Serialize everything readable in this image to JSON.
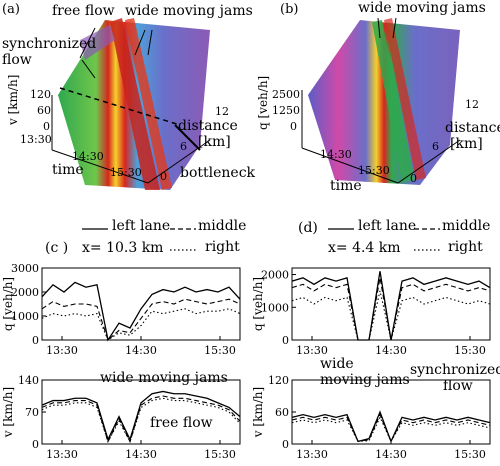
{
  "panels": {
    "a": {
      "tag": "(a)",
      "labels": {
        "free_flow": "free flow",
        "wide_moving_jams": "wide moving jams",
        "synchronized": "synchronized",
        "flow": "flow",
        "bottleneck": "bottleneck",
        "distance": "distance",
        "km": "[km]",
        "time": "time",
        "v_axis": "v [km/h]"
      },
      "v_ticks": [
        "120",
        "60",
        "0"
      ],
      "time_ticks": [
        "13:30",
        "14:30",
        "15:30"
      ],
      "dist_ticks": [
        "12",
        "6",
        "0"
      ]
    },
    "b": {
      "tag": "(b)",
      "labels": {
        "wide_moving_jams": "wide moving jams",
        "distance": "distance",
        "km": "[km]",
        "time": "time",
        "q_axis": "q [veh/h]"
      },
      "q_ticks": [
        "2500",
        "1250",
        "0"
      ],
      "time_ticks": [
        "14:30",
        "15:30"
      ],
      "dist_ticks": [
        "12",
        "6",
        "0"
      ]
    },
    "c": {
      "tag": "(c )",
      "legend": {
        "left": "left lane",
        "middle": "middle",
        "right": "right"
      },
      "location": "x= 10.3 km",
      "q_axis": "q [veh/h]",
      "v_axis": "v [km/h]",
      "annot_jams": "wide moving jams",
      "annot_free": "free flow"
    },
    "d": {
      "tag": "(d)",
      "legend": {
        "left": "left lane",
        "middle": "middle",
        "right": "right"
      },
      "location": "x= 4.4 km",
      "q_axis": "q [veh/h]",
      "v_axis": "v [km/h]",
      "annot_wide": "wide",
      "annot_jams": "moving jams",
      "annot_sync1": "synchronized",
      "annot_sync2": "flow"
    }
  },
  "chart_data": [
    {
      "id": "c-q",
      "type": "line",
      "ylabel": "q [veh/h]",
      "x_ticks": [
        "13:30",
        "14:30",
        "15:30"
      ],
      "ylim": [
        0,
        3000
      ],
      "y_ticks": [
        0,
        1000,
        2000,
        3000
      ],
      "x": [
        0,
        10,
        20,
        30,
        40,
        50,
        60,
        70,
        80,
        90,
        100,
        110,
        120,
        130,
        140,
        150,
        160,
        170,
        180
      ],
      "series": [
        {
          "name": "left lane",
          "values": [
            1800,
            2300,
            2000,
            2400,
            2200,
            2300,
            0,
            700,
            500,
            1300,
            1900,
            2100,
            2000,
            2200,
            2000,
            2100,
            2000,
            2200,
            1700
          ]
        },
        {
          "name": "middle",
          "values": [
            1300,
            1600,
            1400,
            1500,
            1500,
            1400,
            0,
            400,
            300,
            900,
            1500,
            1600,
            1500,
            1700,
            1600,
            1500,
            1600,
            1700,
            1500
          ]
        },
        {
          "name": "right",
          "values": [
            900,
            1100,
            1000,
            1100,
            1000,
            1100,
            0,
            300,
            200,
            600,
            1200,
            1100,
            1200,
            1300,
            1100,
            1200,
            1200,
            1300,
            1100
          ]
        }
      ]
    },
    {
      "id": "c-v",
      "type": "line",
      "ylabel": "v [km/h]",
      "x_ticks": [
        "13:30",
        "14:30",
        "15:30"
      ],
      "ylim": [
        0,
        140
      ],
      "y_ticks": [
        0,
        70,
        140
      ],
      "x": [
        0,
        10,
        20,
        30,
        40,
        50,
        60,
        70,
        80,
        90,
        100,
        110,
        120,
        130,
        140,
        150,
        160,
        170,
        180
      ],
      "series": [
        {
          "name": "left lane",
          "values": [
            85,
            95,
            95,
            100,
            100,
            90,
            10,
            60,
            10,
            90,
            110,
            115,
            110,
            110,
            105,
            100,
            90,
            80,
            60
          ]
        },
        {
          "name": "middle",
          "values": [
            80,
            90,
            90,
            95,
            95,
            85,
            5,
            55,
            5,
            85,
            100,
            105,
            100,
            100,
            95,
            90,
            85,
            75,
            50
          ]
        },
        {
          "name": "right",
          "values": [
            75,
            85,
            85,
            90,
            90,
            80,
            5,
            50,
            5,
            80,
            95,
            100,
            95,
            95,
            90,
            85,
            80,
            70,
            45
          ]
        }
      ]
    },
    {
      "id": "d-q",
      "type": "line",
      "ylabel": "q [veh/h]",
      "x_ticks": [
        "13:30",
        "14:30",
        "15:30"
      ],
      "ylim": [
        0,
        2200
      ],
      "y_ticks": [
        0,
        1000,
        2000
      ],
      "x": [
        0,
        10,
        20,
        30,
        40,
        50,
        60,
        70,
        80,
        90,
        100,
        110,
        120,
        130,
        140,
        150,
        160,
        170,
        180
      ],
      "series": [
        {
          "name": "left lane",
          "values": [
            1800,
            1900,
            1700,
            1900,
            1800,
            1900,
            0,
            0,
            2100,
            0,
            1800,
            1900,
            1700,
            1800,
            1900,
            1800,
            1700,
            1800,
            1600
          ]
        },
        {
          "name": "middle",
          "values": [
            1600,
            1700,
            1500,
            1700,
            1600,
            1700,
            0,
            0,
            1900,
            0,
            1600,
            1700,
            1500,
            1600,
            1700,
            1600,
            1500,
            1600,
            1500
          ]
        },
        {
          "name": "right",
          "values": [
            1200,
            1300,
            1100,
            1300,
            1200,
            1300,
            0,
            0,
            1500,
            0,
            1200,
            1300,
            1100,
            1200,
            1300,
            1200,
            1100,
            1200,
            1100
          ]
        }
      ]
    },
    {
      "id": "d-v",
      "type": "line",
      "ylabel": "v [km/h]",
      "x_ticks": [
        "13:30",
        "14:30",
        "15:30"
      ],
      "ylim": [
        0,
        120
      ],
      "y_ticks": [
        0,
        60,
        120
      ],
      "x": [
        0,
        10,
        20,
        30,
        40,
        50,
        60,
        70,
        80,
        90,
        100,
        110,
        120,
        130,
        140,
        150,
        160,
        170,
        180
      ],
      "series": [
        {
          "name": "left lane",
          "values": [
            50,
            55,
            50,
            55,
            50,
            55,
            5,
            10,
            60,
            5,
            50,
            45,
            50,
            45,
            50,
            45,
            50,
            45,
            40
          ]
        },
        {
          "name": "middle",
          "values": [
            45,
            50,
            45,
            50,
            45,
            50,
            5,
            8,
            55,
            5,
            45,
            40,
            45,
            40,
            45,
            40,
            45,
            40,
            35
          ]
        },
        {
          "name": "right",
          "values": [
            40,
            45,
            40,
            45,
            40,
            45,
            5,
            6,
            50,
            5,
            40,
            35,
            40,
            35,
            40,
            35,
            40,
            35,
            30
          ]
        }
      ]
    }
  ]
}
